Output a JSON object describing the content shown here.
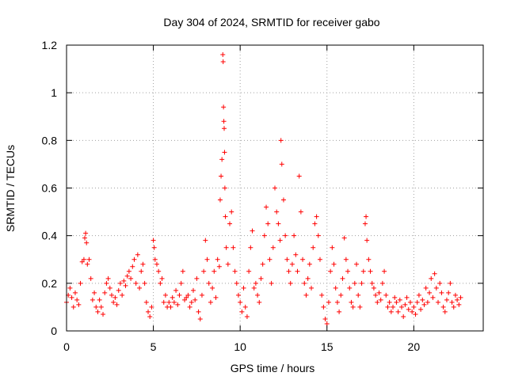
{
  "chart_data": {
    "type": "scatter",
    "title": "Day 304 of 2024, SRMTID for receiver gabo",
    "xlabel": "GPS time / hours",
    "ylabel": "SRMTID / TECUs",
    "xlim": [
      0,
      24
    ],
    "ylim": [
      0,
      1.2
    ],
    "xticks": [
      0,
      5,
      10,
      15,
      20
    ],
    "xtick_labels": [
      "0",
      "5",
      "10",
      "15",
      "20"
    ],
    "yticks": [
      0,
      0.2,
      0.4,
      0.6,
      0.8,
      1.0,
      1.2
    ],
    "ytick_labels": [
      "0",
      "0.2",
      "0.4",
      "0.6",
      "0.8",
      "1",
      "1.2"
    ],
    "grid": true,
    "marker": "+",
    "color": "#ff0000",
    "series": [
      {
        "name": "SRMTID",
        "points": [
          [
            0.0,
            0.12
          ],
          [
            0.1,
            0.15
          ],
          [
            0.2,
            0.18
          ],
          [
            0.3,
            0.14
          ],
          [
            0.4,
            0.1
          ],
          [
            0.5,
            0.16
          ],
          [
            0.6,
            0.13
          ],
          [
            0.7,
            0.11
          ],
          [
            0.8,
            0.2
          ],
          [
            0.9,
            0.29
          ],
          [
            1.0,
            0.3
          ],
          [
            1.05,
            0.39
          ],
          [
            1.1,
            0.41
          ],
          [
            1.15,
            0.37
          ],
          [
            1.2,
            0.28
          ],
          [
            1.3,
            0.3
          ],
          [
            1.4,
            0.22
          ],
          [
            1.5,
            0.13
          ],
          [
            1.6,
            0.16
          ],
          [
            1.7,
            0.1
          ],
          [
            1.8,
            0.08
          ],
          [
            1.9,
            0.13
          ],
          [
            2.0,
            0.1
          ],
          [
            2.1,
            0.07
          ],
          [
            2.2,
            0.16
          ],
          [
            2.3,
            0.2
          ],
          [
            2.4,
            0.22
          ],
          [
            2.5,
            0.18
          ],
          [
            2.6,
            0.15
          ],
          [
            2.7,
            0.12
          ],
          [
            2.8,
            0.14
          ],
          [
            2.9,
            0.11
          ],
          [
            3.0,
            0.17
          ],
          [
            3.1,
            0.2
          ],
          [
            3.2,
            0.15
          ],
          [
            3.3,
            0.21
          ],
          [
            3.4,
            0.19
          ],
          [
            3.5,
            0.23
          ],
          [
            3.6,
            0.25
          ],
          [
            3.7,
            0.22
          ],
          [
            3.8,
            0.27
          ],
          [
            3.9,
            0.3
          ],
          [
            4.0,
            0.2
          ],
          [
            4.1,
            0.32
          ],
          [
            4.2,
            0.18
          ],
          [
            4.3,
            0.25
          ],
          [
            4.4,
            0.28
          ],
          [
            4.5,
            0.2
          ],
          [
            4.6,
            0.12
          ],
          [
            4.7,
            0.08
          ],
          [
            4.8,
            0.06
          ],
          [
            4.9,
            0.1
          ],
          [
            5.0,
            0.38
          ],
          [
            5.05,
            0.35
          ],
          [
            5.1,
            0.3
          ],
          [
            5.2,
            0.28
          ],
          [
            5.3,
            0.25
          ],
          [
            5.4,
            0.2
          ],
          [
            5.5,
            0.22
          ],
          [
            5.6,
            0.12
          ],
          [
            5.7,
            0.15
          ],
          [
            5.8,
            0.1
          ],
          [
            5.9,
            0.12
          ],
          [
            6.0,
            0.1
          ],
          [
            6.1,
            0.14
          ],
          [
            6.2,
            0.12
          ],
          [
            6.3,
            0.17
          ],
          [
            6.4,
            0.11
          ],
          [
            6.5,
            0.15
          ],
          [
            6.6,
            0.2
          ],
          [
            6.7,
            0.25
          ],
          [
            6.8,
            0.13
          ],
          [
            6.9,
            0.14
          ],
          [
            7.0,
            0.15
          ],
          [
            7.1,
            0.1
          ],
          [
            7.2,
            0.12
          ],
          [
            7.3,
            0.17
          ],
          [
            7.4,
            0.13
          ],
          [
            7.5,
            0.22
          ],
          [
            7.6,
            0.08
          ],
          [
            7.7,
            0.05
          ],
          [
            7.8,
            0.15
          ],
          [
            7.9,
            0.25
          ],
          [
            8.0,
            0.38
          ],
          [
            8.1,
            0.3
          ],
          [
            8.2,
            0.2
          ],
          [
            8.3,
            0.12
          ],
          [
            8.4,
            0.18
          ],
          [
            8.5,
            0.25
          ],
          [
            8.6,
            0.14
          ],
          [
            8.7,
            0.3
          ],
          [
            8.8,
            0.27
          ],
          [
            8.85,
            0.55
          ],
          [
            8.9,
            0.65
          ],
          [
            8.95,
            0.72
          ],
          [
            9.0,
            1.16
          ],
          [
            9.02,
            1.13
          ],
          [
            9.04,
            0.94
          ],
          [
            9.06,
            0.88
          ],
          [
            9.08,
            0.85
          ],
          [
            9.1,
            0.75
          ],
          [
            9.12,
            0.6
          ],
          [
            9.15,
            0.48
          ],
          [
            9.2,
            0.35
          ],
          [
            9.3,
            0.28
          ],
          [
            9.4,
            0.45
          ],
          [
            9.5,
            0.5
          ],
          [
            9.6,
            0.35
          ],
          [
            9.7,
            0.25
          ],
          [
            9.8,
            0.2
          ],
          [
            9.9,
            0.15
          ],
          [
            10.0,
            0.12
          ],
          [
            10.1,
            0.08
          ],
          [
            10.2,
            0.18
          ],
          [
            10.3,
            0.1
          ],
          [
            10.4,
            0.06
          ],
          [
            10.5,
            0.25
          ],
          [
            10.6,
            0.35
          ],
          [
            10.7,
            0.42
          ],
          [
            10.8,
            0.18
          ],
          [
            10.9,
            0.2
          ],
          [
            11.0,
            0.15
          ],
          [
            11.1,
            0.12
          ],
          [
            11.2,
            0.22
          ],
          [
            11.3,
            0.28
          ],
          [
            11.4,
            0.4
          ],
          [
            11.5,
            0.52
          ],
          [
            11.6,
            0.45
          ],
          [
            11.7,
            0.3
          ],
          [
            11.8,
            0.2
          ],
          [
            11.9,
            0.35
          ],
          [
            12.0,
            0.6
          ],
          [
            12.1,
            0.5
          ],
          [
            12.2,
            0.45
          ],
          [
            12.3,
            0.38
          ],
          [
            12.35,
            0.8
          ],
          [
            12.4,
            0.7
          ],
          [
            12.5,
            0.55
          ],
          [
            12.6,
            0.4
          ],
          [
            12.7,
            0.3
          ],
          [
            12.8,
            0.25
          ],
          [
            12.9,
            0.2
          ],
          [
            13.0,
            0.28
          ],
          [
            13.1,
            0.4
          ],
          [
            13.2,
            0.32
          ],
          [
            13.3,
            0.25
          ],
          [
            13.4,
            0.65
          ],
          [
            13.5,
            0.5
          ],
          [
            13.6,
            0.3
          ],
          [
            13.7,
            0.2
          ],
          [
            13.8,
            0.15
          ],
          [
            13.9,
            0.22
          ],
          [
            14.0,
            0.28
          ],
          [
            14.1,
            0.18
          ],
          [
            14.2,
            0.35
          ],
          [
            14.3,
            0.45
          ],
          [
            14.4,
            0.48
          ],
          [
            14.5,
            0.4
          ],
          [
            14.6,
            0.3
          ],
          [
            14.7,
            0.15
          ],
          [
            14.8,
            0.1
          ],
          [
            14.9,
            0.05
          ],
          [
            15.0,
            0.03
          ],
          [
            15.1,
            0.12
          ],
          [
            15.2,
            0.25
          ],
          [
            15.3,
            0.35
          ],
          [
            15.4,
            0.28
          ],
          [
            15.5,
            0.18
          ],
          [
            15.6,
            0.12
          ],
          [
            15.7,
            0.08
          ],
          [
            15.8,
            0.15
          ],
          [
            15.9,
            0.22
          ],
          [
            16.0,
            0.39
          ],
          [
            16.1,
            0.3
          ],
          [
            16.2,
            0.25
          ],
          [
            16.3,
            0.18
          ],
          [
            16.4,
            0.12
          ],
          [
            16.5,
            0.1
          ],
          [
            16.6,
            0.2
          ],
          [
            16.7,
            0.28
          ],
          [
            16.8,
            0.15
          ],
          [
            16.9,
            0.1
          ],
          [
            17.0,
            0.2
          ],
          [
            17.1,
            0.25
          ],
          [
            17.2,
            0.45
          ],
          [
            17.25,
            0.48
          ],
          [
            17.3,
            0.38
          ],
          [
            17.4,
            0.3
          ],
          [
            17.5,
            0.25
          ],
          [
            17.6,
            0.2
          ],
          [
            17.7,
            0.18
          ],
          [
            17.8,
            0.15
          ],
          [
            17.9,
            0.12
          ],
          [
            18.0,
            0.16
          ],
          [
            18.1,
            0.13
          ],
          [
            18.2,
            0.2
          ],
          [
            18.3,
            0.25
          ],
          [
            18.4,
            0.15
          ],
          [
            18.5,
            0.1
          ],
          [
            18.6,
            0.12
          ],
          [
            18.7,
            0.08
          ],
          [
            18.8,
            0.1
          ],
          [
            18.9,
            0.14
          ],
          [
            19.0,
            0.12
          ],
          [
            19.1,
            0.08
          ],
          [
            19.2,
            0.13
          ],
          [
            19.3,
            0.1
          ],
          [
            19.4,
            0.06
          ],
          [
            19.5,
            0.11
          ],
          [
            19.6,
            0.14
          ],
          [
            19.7,
            0.09
          ],
          [
            19.8,
            0.12
          ],
          [
            19.9,
            0.08
          ],
          [
            20.0,
            0.1
          ],
          [
            20.1,
            0.07
          ],
          [
            20.2,
            0.12
          ],
          [
            20.3,
            0.15
          ],
          [
            20.4,
            0.09
          ],
          [
            20.5,
            0.13
          ],
          [
            20.6,
            0.11
          ],
          [
            20.7,
            0.18
          ],
          [
            20.8,
            0.12
          ],
          [
            20.9,
            0.16
          ],
          [
            21.0,
            0.22
          ],
          [
            21.1,
            0.14
          ],
          [
            21.2,
            0.24
          ],
          [
            21.3,
            0.18
          ],
          [
            21.4,
            0.12
          ],
          [
            21.5,
            0.2
          ],
          [
            21.6,
            0.16
          ],
          [
            21.7,
            0.1
          ],
          [
            21.8,
            0.08
          ],
          [
            21.9,
            0.13
          ],
          [
            22.0,
            0.16
          ],
          [
            22.1,
            0.2
          ],
          [
            22.2,
            0.12
          ],
          [
            22.3,
            0.1
          ],
          [
            22.4,
            0.15
          ],
          [
            22.5,
            0.13
          ],
          [
            22.6,
            0.11
          ],
          [
            22.7,
            0.14
          ]
        ]
      }
    ]
  }
}
